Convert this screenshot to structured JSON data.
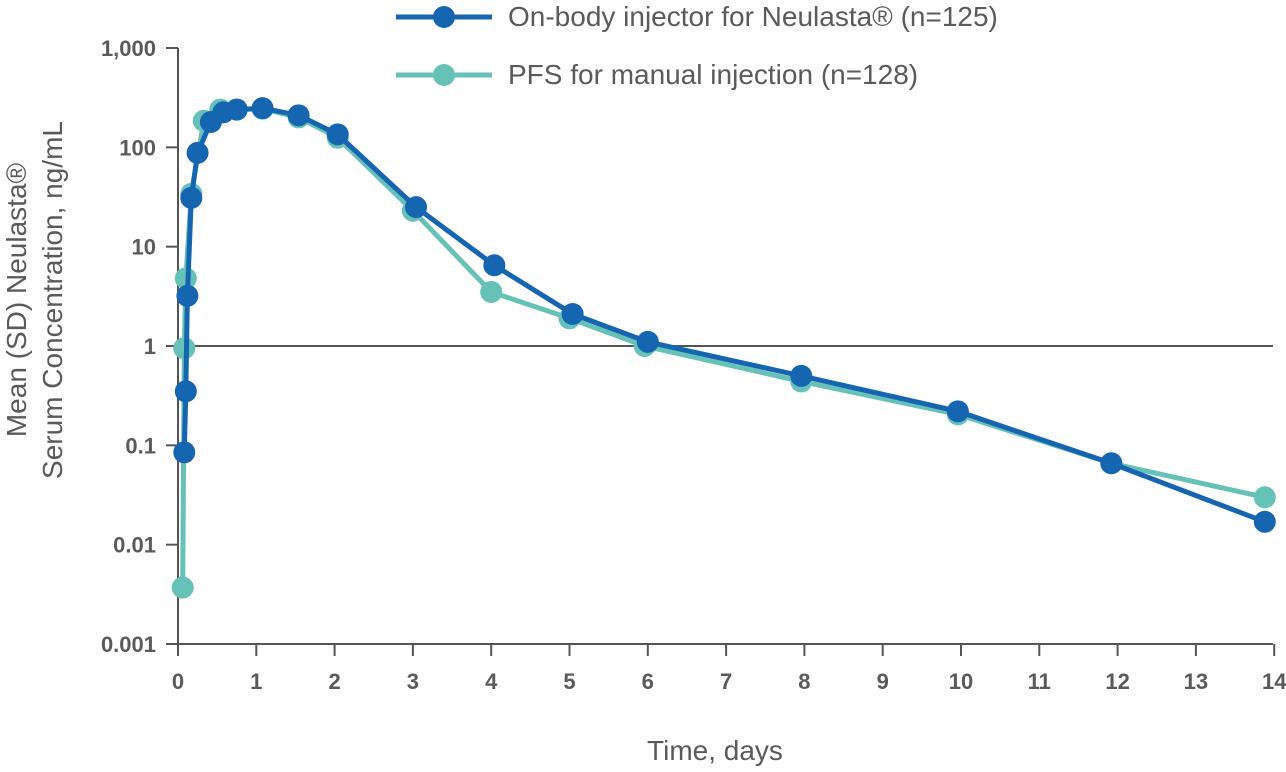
{
  "chart_data": {
    "type": "line",
    "title": "",
    "xlabel": "Time, days",
    "ylabel_line1": "Mean (SD) Neulasta®",
    "ylabel_line2": "Serum Concentration, ng/mL",
    "y_scale": "log",
    "xlim": [
      0,
      14
    ],
    "ylim": [
      0.001,
      1000
    ],
    "x_ticks": [
      0,
      1,
      2,
      3,
      4,
      5,
      6,
      7,
      8,
      9,
      10,
      11,
      12,
      13,
      14
    ],
    "y_ticks": [
      {
        "value": 0.001,
        "label": "0.001"
      },
      {
        "value": 0.01,
        "label": "0.01"
      },
      {
        "value": 0.1,
        "label": "0.1"
      },
      {
        "value": 1,
        "label": "1"
      },
      {
        "value": 10,
        "label": "10"
      },
      {
        "value": 100,
        "label": "100"
      },
      {
        "value": 1000,
        "label": "1,000"
      }
    ],
    "reference_line_y": 1,
    "legend_position": "top",
    "series": [
      {
        "name": "On-body injector for Neulasta® (n=125)",
        "color": "#1565b0",
        "x": [
          0.08,
          0.1,
          0.12,
          0.17,
          0.25,
          0.42,
          0.58,
          0.75,
          1.08,
          1.54,
          2.04,
          3.04,
          4.04,
          5.04,
          6.0,
          7.96,
          9.96,
          11.92,
          13.88
        ],
        "y": [
          0.085,
          0.35,
          3.2,
          31,
          88,
          180,
          225,
          240,
          248,
          210,
          135,
          25,
          6.5,
          2.1,
          1.1,
          0.5,
          0.22,
          0.066,
          0.017
        ]
      },
      {
        "name": "PFS for manual injection (n=128)",
        "color": "#66c2b8",
        "x": [
          0.06,
          0.08,
          0.1,
          0.17,
          0.33,
          0.54,
          0.75,
          1.08,
          1.54,
          2.04,
          3.0,
          4.0,
          5.0,
          5.96,
          7.96,
          9.96,
          11.92,
          13.88
        ],
        "y": [
          0.0037,
          0.95,
          4.8,
          34,
          185,
          240,
          240,
          245,
          200,
          125,
          23,
          3.5,
          1.9,
          1.0,
          0.44,
          0.205,
          0.066,
          0.03
        ]
      }
    ]
  }
}
